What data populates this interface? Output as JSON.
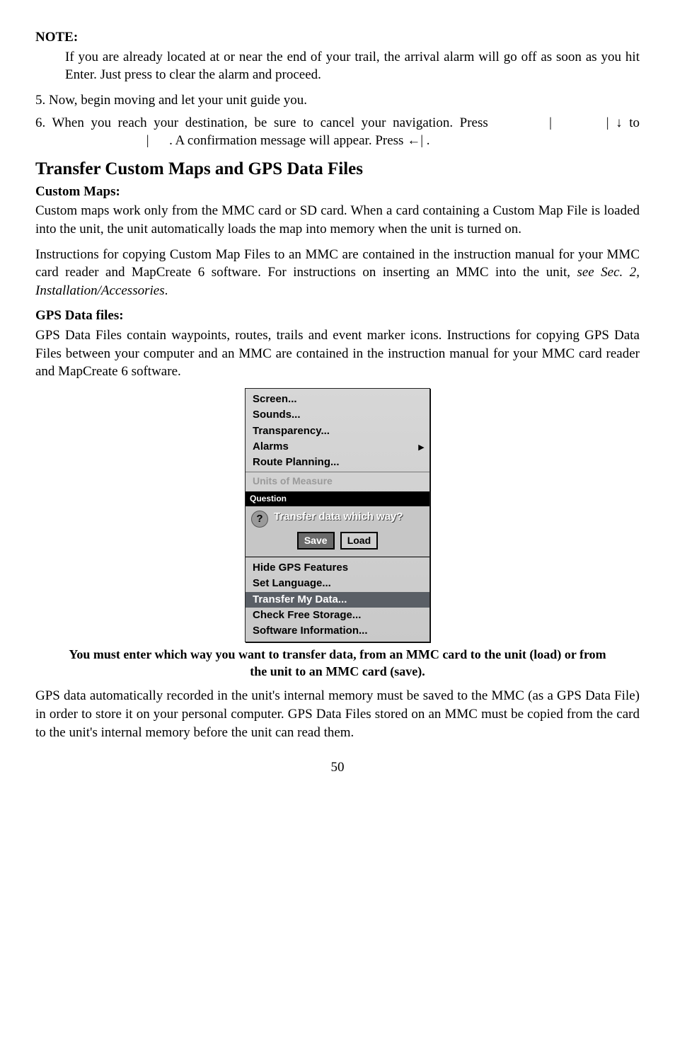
{
  "note_label": "NOTE:",
  "note_body": "If you are already located at or near the end of your trail, the arrival alarm will go off as soon as you hit Enter. Just press to clear the alarm and proceed.",
  "step5": "5. Now, begin moving and let your  unit guide you.",
  "step6a": "6. When you reach your destination, be sure to cancel your navigation. Press",
  "step6_bar1": "|",
  "step6_bar2": "|",
  "step6_down": "↓",
  "step6_to": " to",
  "step6_bar3": "|",
  "step6_end": ". A confirmation message will appear. Press ←|     .",
  "section_title": "Transfer Custom Maps and GPS Data Files",
  "custom_maps_head": "Custom Maps:",
  "custom_maps_p1": "Custom maps work only from the MMC card or SD card. When a card containing a Custom Map File is loaded into the unit, the unit automatically loads the map into memory when the unit is turned on.",
  "custom_maps_p2_a": "Instructions for copying Custom Map Files to an MMC are contained in the instruction manual for your MMC card reader and MapCreate 6 software. For instructions on inserting an MMC into the unit, ",
  "custom_maps_p2_b": "see Sec. 2, Installation/Accessories",
  "custom_maps_p2_c": ".",
  "gps_head": "GPS Data files:",
  "gps_p1": "GPS Data Files contain waypoints, routes, trails and event marker icons. Instructions for copying GPS Data Files between your computer and an MMC are contained in the instruction manual for your MMC card reader and MapCreate 6 software.",
  "menu": {
    "top": [
      "Screen...",
      "Sounds...",
      "Transparency...",
      "Alarms",
      "Route Planning..."
    ],
    "alarms_arrow": "▸",
    "cutoff": "Units of Measure",
    "question_title": "Question",
    "question_text": "Transfer data which way?",
    "btn_save": "Save",
    "btn_load": "Load",
    "bot_before": [
      "Hide GPS Features",
      "Set Language..."
    ],
    "bot_selected": "Transfer My Data...",
    "bot_after": [
      "Check Free Storage...",
      "Software Information..."
    ]
  },
  "caption": "You must enter which way you want to transfer data, from an MMC card to the unit (load) or from the unit to an MMC card (save).",
  "closing": "GPS data automatically recorded in the unit's internal memory must be saved to the MMC (as a GPS Data File) in order to store it on your personal computer. GPS Data Files stored on an MMC must be copied from the card to the unit's internal memory before the unit can read them.",
  "pagenum": "50"
}
